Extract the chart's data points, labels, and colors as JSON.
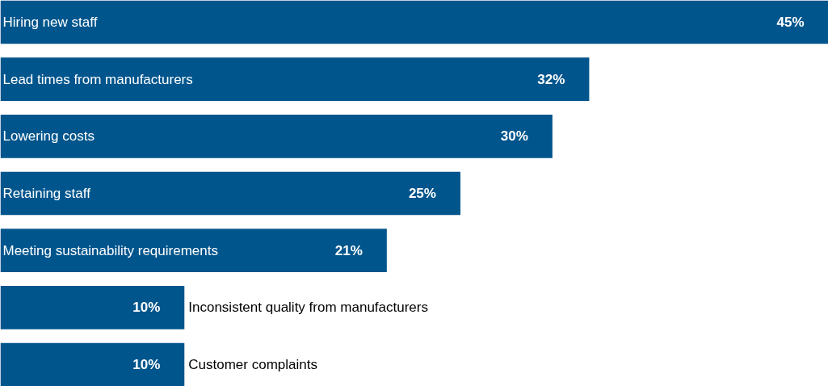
{
  "chart_data": {
    "type": "bar",
    "orientation": "horizontal",
    "categories": [
      "Hiring new staff",
      "Lead times from manufacturers",
      "Lowering costs",
      "Retaining staff",
      "Meeting sustainability requirements",
      "Inconsistent quality from manufacturers",
      "Customer complaints"
    ],
    "values": [
      45,
      32,
      30,
      25,
      21,
      10,
      10
    ],
    "color": "#00558c",
    "data_labels": true,
    "value_labels": [
      "45%",
      "32%",
      "30%",
      "25%",
      "21%",
      "10%",
      "10%"
    ]
  }
}
